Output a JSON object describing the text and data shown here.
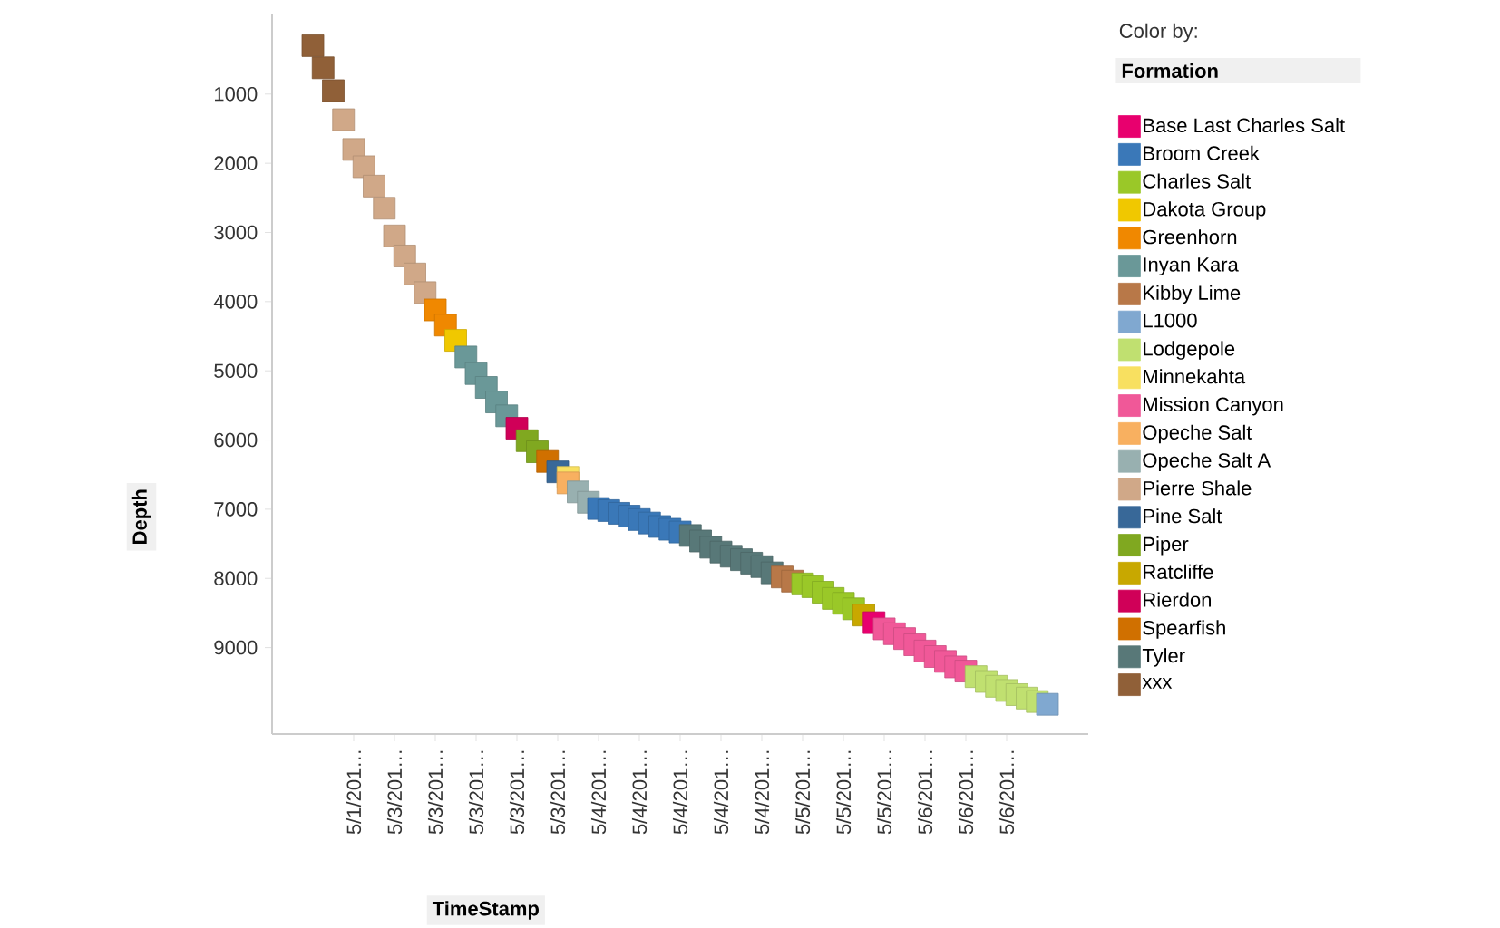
{
  "chart_data": {
    "type": "scatter",
    "xlabel": "TimeStamp",
    "ylabel": "Depth",
    "legend_title": "Formation",
    "annotations": [
      "Color by:"
    ],
    "categories": [
      null,
      null,
      null,
      null,
      "5/1/201…",
      null,
      null,
      null,
      "5/3/201…",
      null,
      null,
      null,
      "5/3/201…",
      null,
      null,
      null,
      "5/3/201…",
      null,
      null,
      null,
      "5/3/201…",
      null,
      null,
      null,
      "5/3/201…",
      null,
      null,
      null,
      "5/4/201…",
      null,
      null,
      null,
      "5/4/201…",
      null,
      null,
      null,
      "5/4/201…",
      null,
      null,
      null,
      "5/4/201…",
      null,
      null,
      null,
      "5/4/201…",
      null,
      null,
      null,
      "5/5/201…",
      null,
      null,
      null,
      "5/5/201…",
      null,
      null,
      null,
      "5/5/201…",
      null,
      null,
      null,
      "5/6/201…",
      null,
      null,
      null,
      "5/6/201…",
      null,
      null,
      null,
      "5/6/201…",
      null,
      null,
      null,
      null
    ],
    "ylim": [
      10250,
      -150
    ],
    "yticks": [
      1000,
      2000,
      3000,
      4000,
      5000,
      6000,
      7000,
      8000,
      9000
    ],
    "marker": "square",
    "legend": "right",
    "grid": false,
    "series": [
      {
        "name": "Base Last Charles Salt",
        "color": "#e8006e",
        "values": [
          null,
          null,
          null,
          null,
          null,
          null,
          null,
          null,
          null,
          null,
          null,
          null,
          null,
          null,
          null,
          null,
          null,
          null,
          null,
          null,
          null,
          null,
          null,
          null,
          null,
          null,
          null,
          null,
          null,
          null,
          null,
          null,
          null,
          null,
          null,
          null,
          null,
          null,
          null,
          null,
          null,
          null,
          null,
          null,
          null,
          null,
          null,
          null,
          null,
          null,
          null,
          null,
          null,
          null,
          null,
          8640,
          null,
          null,
          null,
          null,
          null,
          null,
          null,
          null,
          null,
          null,
          null,
          null,
          null,
          null,
          null,
          null,
          null
        ]
      },
      {
        "name": "Broom Creek",
        "color": "#3a78b8",
        "values": [
          null,
          null,
          null,
          null,
          null,
          null,
          null,
          null,
          null,
          null,
          null,
          null,
          null,
          null,
          null,
          null,
          null,
          null,
          null,
          null,
          null,
          null,
          null,
          null,
          null,
          null,
          null,
          null,
          6990,
          7020,
          7060,
          7100,
          7150,
          7200,
          7250,
          7290,
          7330,
          null,
          null,
          null,
          null,
          null,
          null,
          null,
          null,
          null,
          null,
          null,
          null,
          null,
          null,
          null,
          null,
          null,
          null,
          null,
          null,
          null,
          null,
          null,
          null,
          null,
          null,
          null,
          null,
          null,
          null,
          null,
          null,
          null,
          null,
          null,
          null
        ]
      },
      {
        "name": "Charles Salt",
        "color": "#9ac828",
        "values": [
          null,
          null,
          null,
          null,
          null,
          null,
          null,
          null,
          null,
          null,
          null,
          null,
          null,
          null,
          null,
          null,
          null,
          null,
          null,
          null,
          null,
          null,
          null,
          null,
          null,
          null,
          null,
          null,
          null,
          null,
          null,
          null,
          null,
          null,
          null,
          null,
          null,
          null,
          null,
          null,
          null,
          null,
          null,
          null,
          null,
          null,
          null,
          null,
          8080,
          8120,
          8200,
          8290,
          8360,
          8440,
          null,
          null,
          null,
          null,
          null,
          null,
          null,
          null,
          null,
          null,
          null,
          null,
          null,
          null,
          null,
          null,
          null,
          null,
          null
        ]
      },
      {
        "name": "Dakota Group",
        "color": "#f0c800",
        "values": [
          null,
          null,
          null,
          null,
          null,
          null,
          null,
          null,
          null,
          null,
          null,
          null,
          null,
          null,
          4560,
          null,
          null,
          null,
          null,
          null,
          null,
          null,
          null,
          null,
          null,
          null,
          null,
          null,
          null,
          null,
          null,
          null,
          null,
          null,
          null,
          null,
          null,
          null,
          null,
          null,
          null,
          null,
          null,
          null,
          null,
          null,
          null,
          null,
          null,
          null,
          null,
          null,
          null,
          null,
          null,
          null,
          null,
          null,
          null,
          null,
          null,
          null,
          null,
          null,
          null,
          null,
          null,
          null,
          null,
          null,
          null,
          null,
          null
        ]
      },
      {
        "name": "Greenhorn",
        "color": "#f08800",
        "values": [
          null,
          null,
          null,
          null,
          null,
          null,
          null,
          null,
          null,
          null,
          null,
          null,
          4120,
          4340,
          null,
          null,
          null,
          null,
          null,
          null,
          null,
          null,
          null,
          null,
          null,
          null,
          null,
          null,
          null,
          null,
          null,
          null,
          null,
          null,
          null,
          null,
          null,
          null,
          null,
          null,
          null,
          null,
          null,
          null,
          null,
          null,
          null,
          null,
          null,
          null,
          null,
          null,
          null,
          null,
          null,
          null,
          null,
          null,
          null,
          null,
          null,
          null,
          null,
          null,
          null,
          null,
          null,
          null,
          null,
          null,
          null,
          null,
          null
        ]
      },
      {
        "name": "Inyan Kara",
        "color": "#6a9898",
        "values": [
          null,
          null,
          null,
          null,
          null,
          null,
          null,
          null,
          null,
          null,
          null,
          null,
          null,
          null,
          null,
          4800,
          5040,
          5240,
          5450,
          5650,
          null,
          null,
          null,
          null,
          null,
          null,
          null,
          null,
          null,
          null,
          null,
          null,
          null,
          null,
          null,
          null,
          null,
          null,
          null,
          null,
          null,
          null,
          null,
          null,
          null,
          null,
          null,
          null,
          null,
          null,
          null,
          null,
          null,
          null,
          null,
          null,
          null,
          null,
          null,
          null,
          null,
          null,
          null,
          null,
          null,
          null,
          null,
          null,
          null,
          null,
          null,
          null,
          null
        ]
      },
      {
        "name": "Kibby Lime",
        "color": "#b87848",
        "values": [
          null,
          null,
          null,
          null,
          null,
          null,
          null,
          null,
          null,
          null,
          null,
          null,
          null,
          null,
          null,
          null,
          null,
          null,
          null,
          null,
          null,
          null,
          null,
          null,
          null,
          null,
          null,
          null,
          null,
          null,
          null,
          null,
          null,
          null,
          null,
          null,
          null,
          null,
          null,
          null,
          null,
          null,
          null,
          null,
          null,
          null,
          7980,
          8040,
          null,
          null,
          null,
          null,
          null,
          null,
          null,
          null,
          null,
          null,
          null,
          null,
          null,
          null,
          null,
          null,
          null,
          null,
          null,
          null,
          null,
          null,
          null,
          null,
          null
        ]
      },
      {
        "name": "L1000",
        "color": "#80a8d0",
        "values": [
          null,
          null,
          null,
          null,
          null,
          null,
          null,
          null,
          null,
          null,
          null,
          null,
          null,
          null,
          null,
          null,
          null,
          null,
          null,
          null,
          null,
          null,
          null,
          null,
          null,
          null,
          null,
          null,
          null,
          null,
          null,
          null,
          null,
          null,
          null,
          null,
          null,
          null,
          null,
          null,
          null,
          null,
          null,
          null,
          null,
          null,
          null,
          null,
          null,
          null,
          null,
          null,
          null,
          null,
          null,
          null,
          null,
          null,
          null,
          null,
          null,
          null,
          null,
          null,
          null,
          null,
          null,
          null,
          null,
          null,
          null,
          null,
          9820
        ]
      },
      {
        "name": "Lodgepole",
        "color": "#c0e070",
        "values": [
          null,
          null,
          null,
          null,
          null,
          null,
          null,
          null,
          null,
          null,
          null,
          null,
          null,
          null,
          null,
          null,
          null,
          null,
          null,
          null,
          null,
          null,
          null,
          null,
          null,
          null,
          null,
          null,
          null,
          null,
          null,
          null,
          null,
          null,
          null,
          null,
          null,
          null,
          null,
          null,
          null,
          null,
          null,
          null,
          null,
          null,
          null,
          null,
          null,
          null,
          null,
          null,
          null,
          null,
          null,
          null,
          null,
          null,
          null,
          null,
          null,
          null,
          null,
          null,
          null,
          9420,
          9490,
          9560,
          9620,
          9680,
          9730,
          9780,
          null
        ]
      },
      {
        "name": "Minnekahta",
        "color": "#f8e060",
        "values": [
          null,
          null,
          null,
          null,
          null,
          null,
          null,
          null,
          null,
          null,
          null,
          null,
          null,
          null,
          null,
          null,
          null,
          null,
          null,
          null,
          null,
          null,
          null,
          null,
          null,
          6540,
          null,
          null,
          null,
          null,
          null,
          null,
          null,
          null,
          null,
          null,
          null,
          null,
          null,
          null,
          null,
          null,
          null,
          null,
          null,
          null,
          null,
          null,
          null,
          null,
          null,
          null,
          null,
          null,
          null,
          null,
          null,
          null,
          null,
          null,
          null,
          null,
          null,
          null,
          null,
          null,
          null,
          null,
          null,
          null,
          null,
          null,
          null
        ]
      },
      {
        "name": "Mission Canyon",
        "color": "#f05898",
        "values": [
          null,
          null,
          null,
          null,
          null,
          null,
          null,
          null,
          null,
          null,
          null,
          null,
          null,
          null,
          null,
          null,
          null,
          null,
          null,
          null,
          null,
          null,
          null,
          null,
          null,
          null,
          null,
          null,
          null,
          null,
          null,
          null,
          null,
          null,
          null,
          null,
          null,
          null,
          null,
          null,
          null,
          null,
          null,
          null,
          null,
          null,
          null,
          null,
          null,
          null,
          null,
          null,
          null,
          null,
          null,
          null,
          8730,
          8800,
          8870,
          8960,
          9050,
          9130,
          9200,
          9280,
          9340,
          null,
          null,
          null,
          null,
          null,
          null,
          null,
          null
        ]
      },
      {
        "name": "Opeche Salt",
        "color": "#f8b060",
        "values": [
          null,
          null,
          null,
          null,
          null,
          null,
          null,
          null,
          null,
          null,
          null,
          null,
          null,
          null,
          null,
          null,
          null,
          null,
          null,
          null,
          null,
          null,
          null,
          null,
          null,
          6620,
          null,
          null,
          null,
          null,
          null,
          null,
          null,
          null,
          null,
          null,
          null,
          null,
          null,
          null,
          null,
          null,
          null,
          null,
          null,
          null,
          null,
          null,
          null,
          null,
          null,
          null,
          null,
          null,
          null,
          null,
          null,
          null,
          null,
          null,
          null,
          null,
          null,
          null,
          null,
          null,
          null,
          null,
          null,
          null,
          null,
          null,
          null
        ]
      },
      {
        "name": "Opeche Salt A",
        "color": "#98b0b0",
        "values": [
          null,
          null,
          null,
          null,
          null,
          null,
          null,
          null,
          null,
          null,
          null,
          null,
          null,
          null,
          null,
          null,
          null,
          null,
          null,
          null,
          null,
          null,
          null,
          null,
          null,
          null,
          6750,
          6900,
          null,
          null,
          null,
          null,
          null,
          null,
          null,
          null,
          null,
          null,
          null,
          null,
          null,
          null,
          null,
          null,
          null,
          null,
          null,
          null,
          null,
          null,
          null,
          null,
          null,
          null,
          null,
          null,
          null,
          null,
          null,
          null,
          null,
          null,
          null,
          null,
          null,
          null,
          null,
          null,
          null,
          null,
          null,
          null,
          null
        ]
      },
      {
        "name": "Pierre Shale",
        "color": "#d0a888",
        "values": [
          null,
          null,
          null,
          1370,
          1800,
          2050,
          2330,
          2650,
          3050,
          3340,
          3600,
          3870,
          null,
          null,
          null,
          null,
          null,
          null,
          null,
          null,
          null,
          null,
          null,
          null,
          null,
          null,
          null,
          null,
          null,
          null,
          null,
          null,
          null,
          null,
          null,
          null,
          null,
          null,
          null,
          null,
          null,
          null,
          null,
          null,
          null,
          null,
          null,
          null,
          null,
          null,
          null,
          null,
          null,
          null,
          null,
          null,
          null,
          null,
          null,
          null,
          null,
          null,
          null,
          null,
          null,
          null,
          null,
          null,
          null,
          null,
          null,
          null,
          null
        ]
      },
      {
        "name": "Pine Salt",
        "color": "#386898",
        "values": [
          null,
          null,
          null,
          null,
          null,
          null,
          null,
          null,
          null,
          null,
          null,
          null,
          null,
          null,
          null,
          null,
          null,
          null,
          null,
          null,
          null,
          null,
          null,
          null,
          6460,
          null,
          null,
          null,
          null,
          null,
          null,
          null,
          null,
          null,
          null,
          null,
          null,
          null,
          null,
          null,
          null,
          null,
          null,
          null,
          null,
          null,
          null,
          null,
          null,
          null,
          null,
          null,
          null,
          null,
          null,
          null,
          null,
          null,
          null,
          null,
          null,
          null,
          null,
          null,
          null,
          null,
          null,
          null,
          null,
          null,
          null,
          null,
          null
        ]
      },
      {
        "name": "Piper",
        "color": "#80a820",
        "values": [
          null,
          null,
          null,
          null,
          null,
          null,
          null,
          null,
          null,
          null,
          null,
          null,
          null,
          null,
          null,
          null,
          null,
          null,
          null,
          null,
          null,
          6010,
          6170,
          null,
          null,
          null,
          null,
          null,
          null,
          null,
          null,
          null,
          null,
          null,
          null,
          null,
          null,
          null,
          null,
          null,
          null,
          null,
          null,
          null,
          null,
          null,
          null,
          null,
          null,
          null,
          null,
          null,
          null,
          null,
          null,
          null,
          null,
          null,
          null,
          null,
          null,
          null,
          null,
          null,
          null,
          null,
          null,
          null,
          null,
          null,
          null,
          null,
          null
        ]
      },
      {
        "name": "Ratcliffe",
        "color": "#c8a800",
        "values": [
          null,
          null,
          null,
          null,
          null,
          null,
          null,
          null,
          null,
          null,
          null,
          null,
          null,
          null,
          null,
          null,
          null,
          null,
          null,
          null,
          null,
          null,
          null,
          null,
          null,
          null,
          null,
          null,
          null,
          null,
          null,
          null,
          null,
          null,
          null,
          null,
          null,
          null,
          null,
          null,
          null,
          null,
          null,
          null,
          null,
          null,
          null,
          null,
          null,
          null,
          null,
          null,
          null,
          null,
          8530,
          null,
          null,
          null,
          null,
          null,
          null,
          null,
          null,
          null,
          null,
          null,
          null,
          null,
          null,
          null,
          null,
          null,
          null
        ]
      },
      {
        "name": "Rierdon",
        "color": "#d00058",
        "values": [
          null,
          null,
          null,
          null,
          null,
          null,
          null,
          null,
          null,
          null,
          null,
          null,
          null,
          null,
          null,
          null,
          null,
          null,
          null,
          null,
          5830,
          null,
          null,
          null,
          null,
          null,
          null,
          null,
          null,
          null,
          null,
          null,
          null,
          null,
          null,
          null,
          null,
          null,
          null,
          null,
          null,
          null,
          null,
          null,
          null,
          null,
          null,
          null,
          null,
          null,
          null,
          null,
          null,
          null,
          null,
          null,
          null,
          null,
          null,
          null,
          null,
          null,
          null,
          null,
          null,
          null,
          null,
          null,
          null,
          null,
          null,
          null,
          null
        ]
      },
      {
        "name": "Spearfish",
        "color": "#d07000",
        "values": [
          null,
          null,
          null,
          null,
          null,
          null,
          null,
          null,
          null,
          null,
          null,
          null,
          null,
          null,
          null,
          null,
          null,
          null,
          null,
          null,
          null,
          null,
          null,
          6310,
          null,
          null,
          null,
          null,
          null,
          null,
          null,
          null,
          null,
          null,
          null,
          null,
          null,
          null,
          null,
          null,
          null,
          null,
          null,
          null,
          null,
          null,
          null,
          null,
          null,
          null,
          null,
          null,
          null,
          null,
          null,
          null,
          null,
          null,
          null,
          null,
          null,
          null,
          null,
          null,
          null,
          null,
          null,
          null,
          null,
          null,
          null,
          null,
          null
        ]
      },
      {
        "name": "Tyler",
        "color": "#587878",
        "values": [
          null,
          null,
          null,
          null,
          null,
          null,
          null,
          null,
          null,
          null,
          null,
          null,
          null,
          null,
          null,
          null,
          null,
          null,
          null,
          null,
          null,
          null,
          null,
          null,
          null,
          null,
          null,
          null,
          null,
          null,
          null,
          null,
          null,
          null,
          null,
          null,
          null,
          7380,
          7460,
          7550,
          7620,
          7680,
          7730,
          7780,
          7830,
          7920,
          null,
          null,
          null,
          null,
          null,
          null,
          null,
          null,
          null,
          null,
          null,
          null,
          null,
          null,
          null,
          null,
          null,
          null,
          null,
          null,
          null,
          null,
          null,
          null,
          null,
          null,
          null
        ]
      },
      {
        "name": "xxx",
        "color": "#906038",
        "values": [
          300,
          620,
          950,
          null,
          null,
          null,
          null,
          null,
          null,
          null,
          null,
          null,
          null,
          null,
          null,
          null,
          null,
          null,
          null,
          null,
          null,
          null,
          null,
          null,
          null,
          null,
          null,
          null,
          null,
          null,
          null,
          null,
          null,
          null,
          null,
          null,
          null,
          null,
          null,
          null,
          null,
          null,
          null,
          null,
          null,
          null,
          null,
          null,
          null,
          null,
          null,
          null,
          null,
          null,
          null,
          null,
          null,
          null,
          null,
          null,
          null,
          null,
          null,
          null,
          null,
          null,
          null,
          null,
          null,
          null,
          null,
          null,
          null
        ]
      }
    ]
  }
}
